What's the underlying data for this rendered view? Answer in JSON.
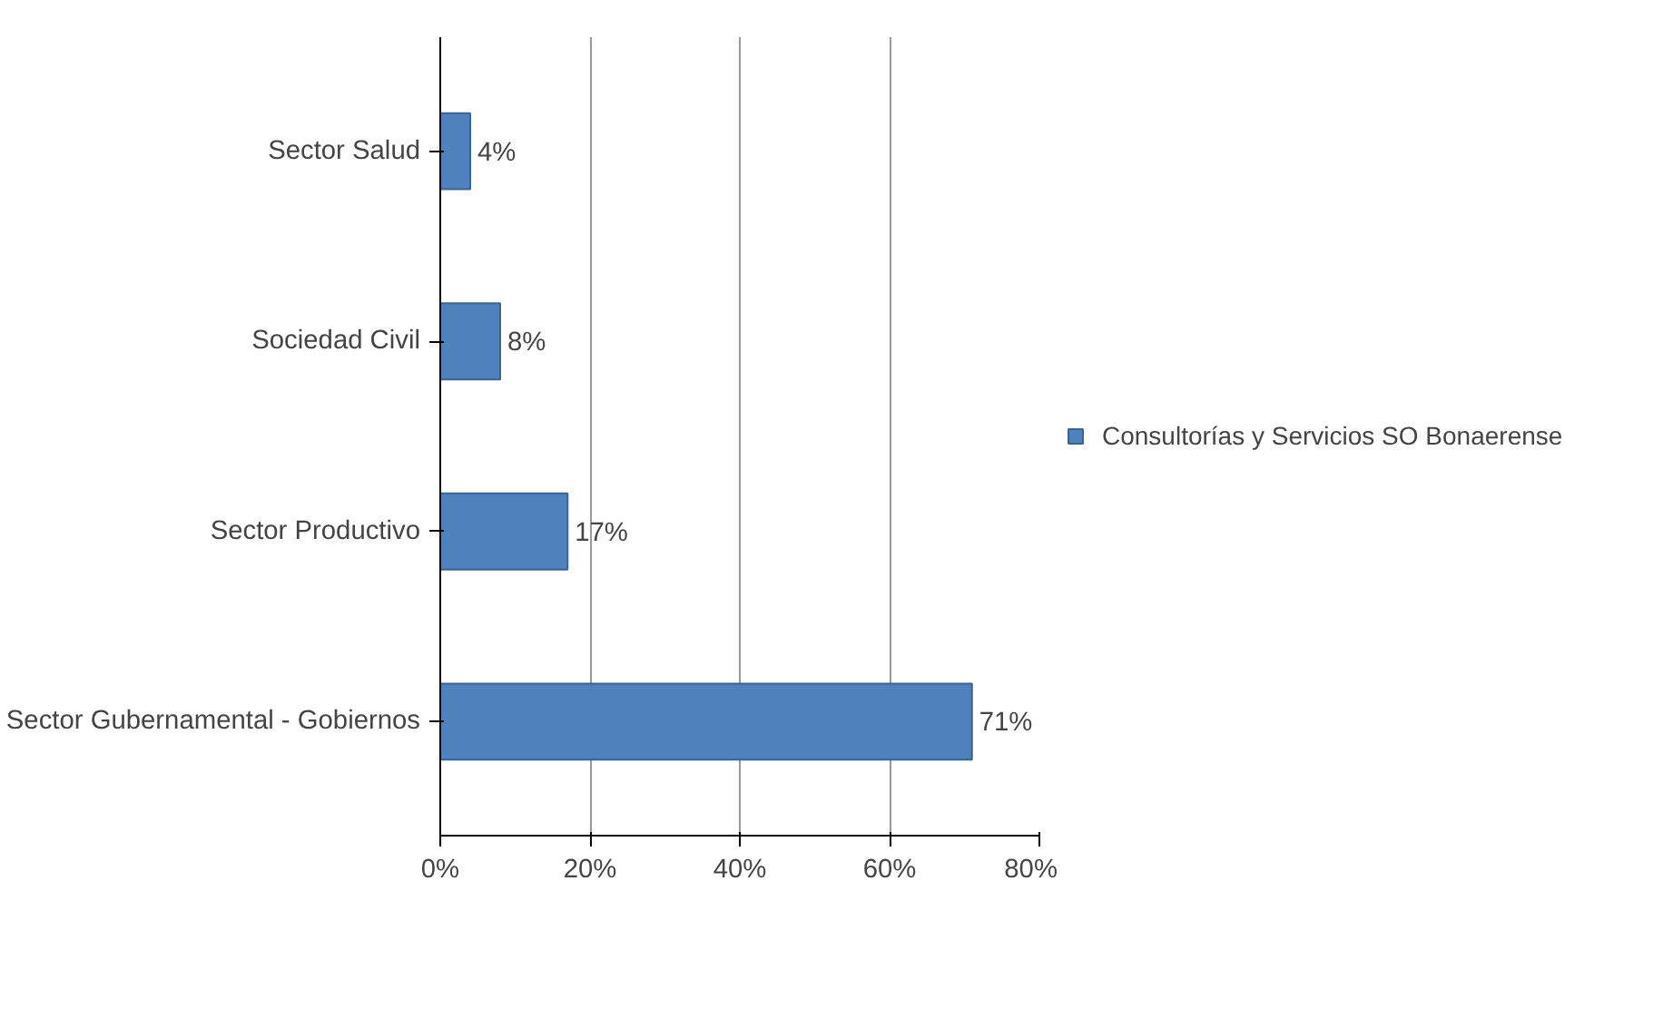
{
  "chart_data": {
    "type": "bar",
    "orientation": "horizontal",
    "categories": [
      "Sector Salud",
      "Sociedad Civil",
      "Sector Productivo",
      "Sector Gubernamental - Gobiernos"
    ],
    "series": [
      {
        "name": "Consultorías y Servicios SO Bonaerense",
        "color": "#4f81bd",
        "values": [
          4,
          8,
          17,
          71
        ],
        "value_labels": [
          "4%",
          "8%",
          "17%",
          "71%"
        ]
      }
    ],
    "xlim": [
      0,
      80
    ],
    "xticks": [
      {
        "value": 0,
        "label": "0%"
      },
      {
        "value": 20,
        "label": "20%"
      },
      {
        "value": 40,
        "label": "40%"
      },
      {
        "value": 60,
        "label": "60%"
      },
      {
        "value": 80,
        "label": "80%"
      }
    ],
    "grid": "x",
    "legend": "right"
  }
}
